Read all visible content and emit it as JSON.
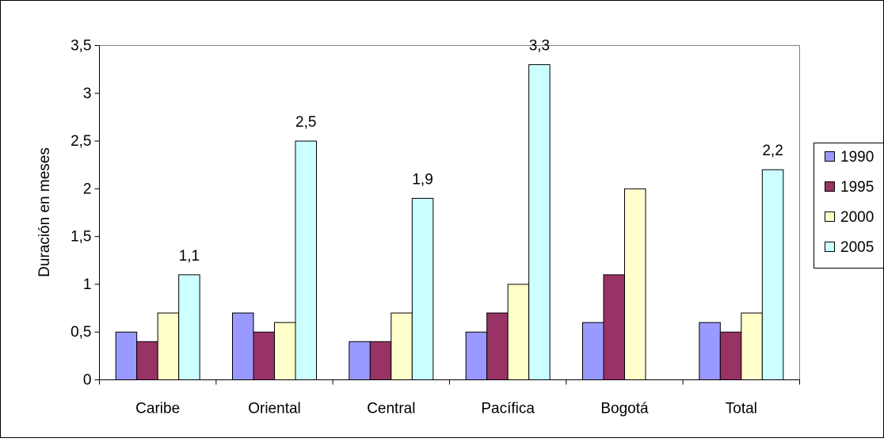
{
  "chart_data": {
    "type": "bar",
    "title": "",
    "xlabel": "",
    "ylabel": "Duración en meses",
    "ylim": [
      0,
      3.5
    ],
    "yticks": [
      "0",
      "0,5",
      "1",
      "1,5",
      "2",
      "2,5",
      "3",
      "3,5"
    ],
    "categories": [
      "Caribe",
      "Oriental",
      "Central",
      "Pacífica",
      "Bogotá",
      "Total"
    ],
    "series": [
      {
        "name": "1990",
        "color": "#9999FF",
        "values": [
          0.5,
          0.7,
          0.4,
          0.5,
          0.6,
          0.6
        ],
        "labels": [
          "",
          "",
          "",
          "",
          "",
          ""
        ]
      },
      {
        "name": "1995",
        "color": "#993366",
        "values": [
          0.4,
          0.5,
          0.4,
          0.7,
          1.1,
          0.5
        ],
        "labels": [
          "",
          "",
          "",
          "",
          "",
          ""
        ]
      },
      {
        "name": "2000",
        "color": "#FFFFCC",
        "values": [
          0.7,
          0.6,
          0.7,
          1.0,
          2.0,
          0.7
        ],
        "labels": [
          "",
          "",
          "",
          "",
          "",
          ""
        ]
      },
      {
        "name": "2005",
        "color": "#CCFFFF",
        "values": [
          1.1,
          2.5,
          1.9,
          3.3,
          0,
          2.2
        ],
        "labels": [
          "1,1",
          "2,5",
          "1,9",
          "3,3",
          "",
          "2,2"
        ]
      }
    ],
    "grid": false,
    "plot_background": "#FFFFFF",
    "legend_position": "right"
  }
}
